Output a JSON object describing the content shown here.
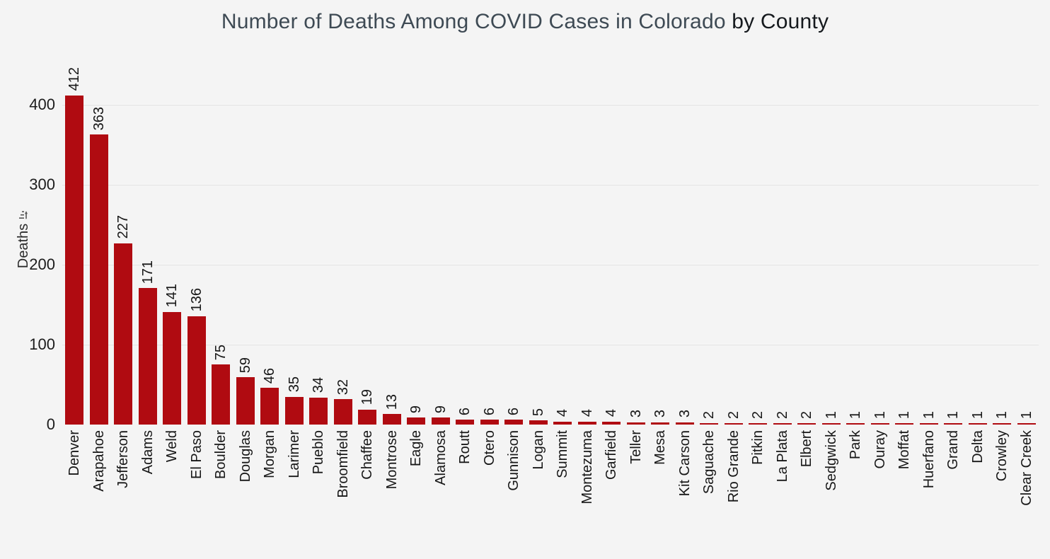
{
  "title": {
    "main": "Number of Deaths Among COVID Cases in Colorado",
    "suffix": "by County"
  },
  "y_axis": {
    "label": "Deaths",
    "ticks": [
      0,
      100,
      200,
      300,
      400
    ]
  },
  "colors": {
    "background": "#f4f4f4",
    "bar": "#b00b11",
    "title_main": "#3e4a54",
    "title_suffix": "#15191d",
    "gridline": "#e0e0e0"
  },
  "icons": {
    "y_axis_sort": "sort-descending-icon"
  },
  "chart_data": {
    "type": "bar",
    "title": "Number of Deaths Among COVID Cases in Colorado by County",
    "xlabel": "",
    "ylabel": "Deaths",
    "ylim": [
      0,
      465
    ],
    "grid": true,
    "value_labels": true,
    "bar_color": "#b00b11",
    "categories": [
      "Denver",
      "Arapahoe",
      "Jefferson",
      "Adams",
      "Weld",
      "El Paso",
      "Boulder",
      "Douglas",
      "Morgan",
      "Larimer",
      "Pueblo",
      "Broomfield",
      "Chaffee",
      "Montrose",
      "Eagle",
      "Alamosa",
      "Routt",
      "Otero",
      "Gunnison",
      "Logan",
      "Summit",
      "Montezuma",
      "Garfield",
      "Teller",
      "Mesa",
      "Kit Carson",
      "Saguache",
      "Rio Grande",
      "Pitkin",
      "La Plata",
      "Elbert",
      "Sedgwick",
      "Park",
      "Ouray",
      "Moffat",
      "Huerfano",
      "Grand",
      "Delta",
      "Crowley",
      "Clear Creek"
    ],
    "values": [
      412,
      363,
      227,
      171,
      141,
      136,
      75,
      59,
      46,
      35,
      34,
      32,
      19,
      13,
      9,
      9,
      6,
      6,
      6,
      5,
      4,
      4,
      4,
      3,
      3,
      3,
      2,
      2,
      2,
      2,
      2,
      1,
      1,
      1,
      1,
      1,
      1,
      1,
      1,
      1
    ]
  }
}
